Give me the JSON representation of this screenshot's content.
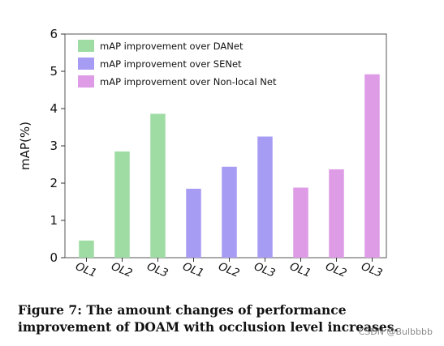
{
  "chart_data": {
    "type": "bar",
    "ylabel": "mAP(%)",
    "xlabel": "",
    "ylim": [
      0,
      6
    ],
    "yticks": [
      0,
      1,
      2,
      3,
      4,
      5,
      6
    ],
    "grid": false,
    "legend_position": "top-left",
    "series": [
      {
        "name": "mAP improvement over DANet",
        "color": "#9fdca4",
        "categories": [
          "OL1",
          "OL2",
          "OL3"
        ],
        "values": [
          0.46,
          2.85,
          3.86
        ]
      },
      {
        "name": "mAP improvement over SENet",
        "color": "#a79cf4",
        "categories": [
          "OL1",
          "OL2",
          "OL3"
        ],
        "values": [
          1.85,
          2.44,
          3.25
        ]
      },
      {
        "name": "mAP improvement over Non-local Net",
        "color": "#de9be6",
        "categories": [
          "OL1",
          "OL2",
          "OL3"
        ],
        "values": [
          1.88,
          2.37,
          4.92
        ]
      }
    ]
  },
  "caption": "Figure 7: The amount changes of performance improvement of DOAM with occlusion level increases.",
  "watermark": "CSDN @Bulbbbb"
}
